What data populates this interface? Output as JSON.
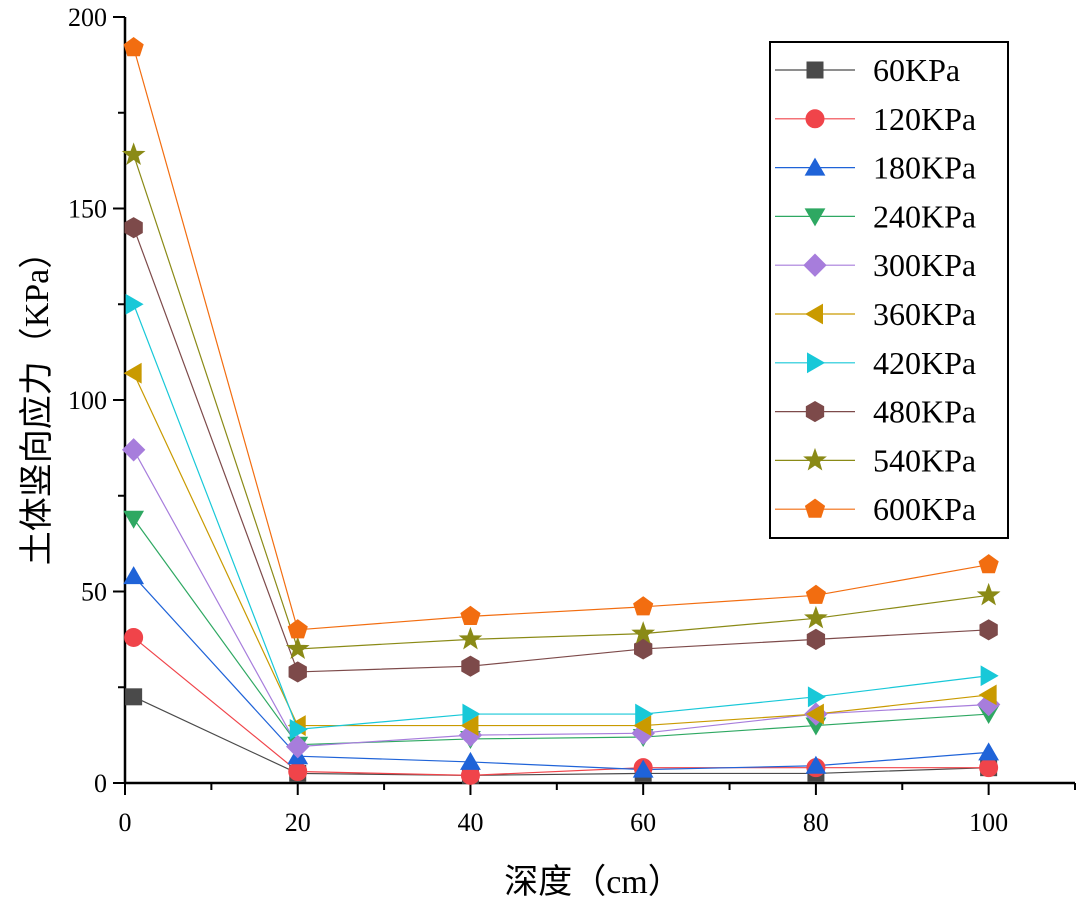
{
  "chart_data": {
    "type": "line",
    "title": "",
    "xlabel": "深度（cm）",
    "ylabel": "土体竖向应力（KPa）",
    "xlim": [
      0,
      110
    ],
    "ylim": [
      0,
      200
    ],
    "x_ticks": [
      "0",
      "20",
      "40",
      "60",
      "80",
      "100"
    ],
    "y_ticks": [
      "0",
      "50",
      "100",
      "150",
      "200"
    ],
    "legend_position": "top-right",
    "x": [
      1,
      20,
      40,
      60,
      80,
      100
    ],
    "series": [
      {
        "name": "60KPa",
        "color": "#4a4a4a",
        "marker": "square",
        "values": [
          22.5,
          2.5,
          2.0,
          2.5,
          2.5,
          4.0
        ]
      },
      {
        "name": "120KPa",
        "color": "#f0444a",
        "marker": "circle",
        "values": [
          38,
          3.0,
          2.0,
          4.0,
          4.0,
          4.0
        ]
      },
      {
        "name": "180KPa",
        "color": "#1f63d8",
        "marker": "triangle-up",
        "values": [
          54,
          7.0,
          5.5,
          3.5,
          4.5,
          8.0
        ]
      },
      {
        "name": "240KPa",
        "color": "#2ea862",
        "marker": "triangle-down",
        "values": [
          69,
          10.0,
          11.5,
          12.0,
          15.0,
          18.0
        ]
      },
      {
        "name": "300KPa",
        "color": "#a77ddc",
        "marker": "diamond",
        "values": [
          87,
          9.5,
          12.5,
          13.0,
          18.0,
          20.5
        ]
      },
      {
        "name": "360KPa",
        "color": "#c99a00",
        "marker": "triangle-left",
        "values": [
          107,
          15.0,
          15.0,
          15.0,
          18.0,
          23.0
        ]
      },
      {
        "name": "420KPa",
        "color": "#18c8d8",
        "marker": "triangle-right",
        "values": [
          125,
          14.0,
          18.0,
          18.0,
          22.5,
          28.0
        ]
      },
      {
        "name": "480KPa",
        "color": "#7d4a4a",
        "marker": "hexagon",
        "values": [
          145,
          29.0,
          30.5,
          35.0,
          37.5,
          40.0
        ]
      },
      {
        "name": "540KPa",
        "color": "#8a8a16",
        "marker": "star",
        "values": [
          164,
          35.0,
          37.5,
          39.0,
          43.0,
          49.0
        ]
      },
      {
        "name": "600KPa",
        "color": "#f26d10",
        "marker": "pentagon",
        "values": [
          192,
          40.0,
          43.5,
          46.0,
          49.0,
          57.0
        ]
      }
    ]
  }
}
